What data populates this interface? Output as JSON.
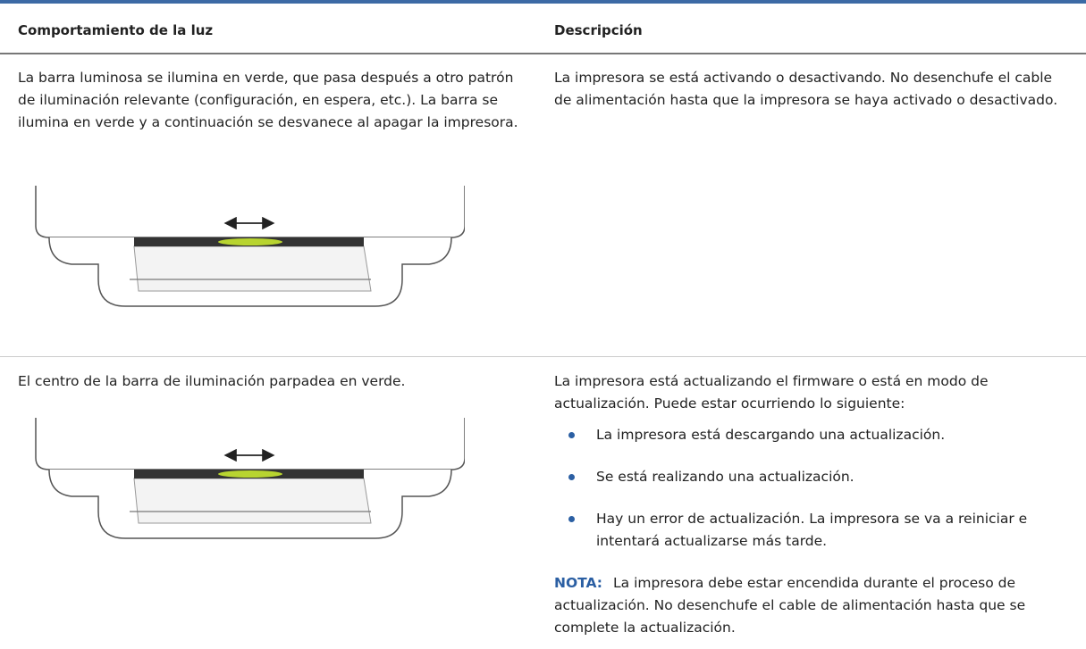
{
  "table": {
    "headers": [
      "Comportamiento de la luz",
      "Descripción"
    ],
    "rows": [
      {
        "behavior": "La barra luminosa se ilumina en verde, que pasa después a otro patrón de iluminación relevante (configuración, en espera, etc.). La barra se ilumina en verde y a continuación se desvanece al apagar la impresora.",
        "description": "La impresora se está activando o desactivando. No desenchufe el cable de alimentación hasta que la impresora se haya activado o desactivado."
      },
      {
        "behavior": "El centro de la barra de iluminación parpadea en verde.",
        "description": "La impresora está actualizando el firmware o está en modo de actualización. Puede estar ocurriendo lo siguiente:",
        "bullets": [
          "La impresora está descargando una actualización.",
          "Se está realizando una actualización.",
          "Hay un error de actualización. La impresora se va a reiniciar e intentará actualizarse más tarde."
        ],
        "note_label": "NOTA:",
        "note": "La impresora debe estar encendida durante el proceso de actualización. No desenchufe el cable de alimentación hasta que se complete la actualización."
      }
    ]
  }
}
